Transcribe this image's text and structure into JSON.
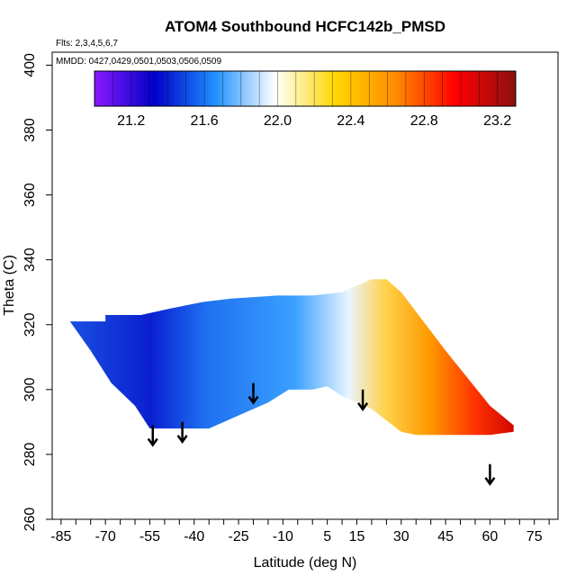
{
  "chart_data": {
    "type": "heatmap",
    "title": "ATOM4 Southbound HCFC142b_PMSD",
    "subtitle_flights": "Flts: 2,3,4,5,6,7",
    "subtitle_dates": "MMDD: 0427,0429,0501,0503,0506,0509",
    "xlabel": "Latitude (deg N)",
    "ylabel": "Theta (C)",
    "xlim": [
      -88,
      83
    ],
    "ylim": [
      260,
      404
    ],
    "x_tick_labels": [
      "-85",
      "-70",
      "-55",
      "-40",
      "-25",
      "-10",
      "5",
      "15",
      "30",
      "45",
      "60",
      "75"
    ],
    "x_tick_values": [
      -85,
      -70,
      -55,
      -40,
      -25,
      -10,
      5,
      15,
      30,
      45,
      60,
      75
    ],
    "y_tick_labels": [
      "260",
      "280",
      "300",
      "320",
      "340",
      "360",
      "380",
      "400"
    ],
    "y_tick_values": [
      260,
      280,
      300,
      320,
      340,
      360,
      380,
      400
    ],
    "colorbar": {
      "range": [
        21.0,
        23.3
      ],
      "tick_labels": [
        "21.2",
        "21.6",
        "22.0",
        "22.4",
        "22.8",
        "23.2"
      ],
      "tick_values": [
        21.2,
        21.6,
        22.0,
        22.4,
        22.8,
        23.2
      ],
      "colors": [
        "#8a1aff",
        "#0000c8",
        "#1e90ff",
        "#ffffff",
        "#ffd700",
        "#ff8c00",
        "#ff0000",
        "#8b1010"
      ]
    },
    "field": {
      "lat_range": [
        -82,
        70
      ],
      "theta_top": [
        [
          -82,
          321
        ],
        [
          -70,
          321
        ],
        [
          -70,
          323
        ],
        [
          -58,
          323
        ],
        [
          -48,
          325
        ],
        [
          -37,
          327
        ],
        [
          -28,
          328
        ],
        [
          -12,
          329
        ],
        [
          0,
          329
        ],
        [
          10,
          330
        ],
        [
          20,
          334
        ],
        [
          25,
          334
        ],
        [
          30,
          330
        ],
        [
          45,
          312
        ],
        [
          60,
          295
        ],
        [
          68,
          289
        ]
      ],
      "theta_bottom": [
        [
          -82,
          321
        ],
        [
          -75,
          312
        ],
        [
          -68,
          302
        ],
        [
          -60,
          295
        ],
        [
          -55,
          288
        ],
        [
          -35,
          288
        ],
        [
          -25,
          292
        ],
        [
          -15,
          296
        ],
        [
          -8,
          300
        ],
        [
          0,
          300
        ],
        [
          5,
          301
        ],
        [
          10,
          298
        ],
        [
          20,
          294
        ],
        [
          30,
          287
        ],
        [
          35,
          286
        ],
        [
          45,
          286
        ],
        [
          60,
          286
        ],
        [
          68,
          287
        ],
        [
          68,
          289
        ]
      ]
    },
    "markers_label": "descent arrows",
    "arrows": [
      {
        "lat": -54,
        "theta": 289
      },
      {
        "lat": -44,
        "theta": 290
      },
      {
        "lat": -20,
        "theta": 302
      },
      {
        "lat": 17,
        "theta": 300
      },
      {
        "lat": 60,
        "theta": 277
      }
    ]
  }
}
